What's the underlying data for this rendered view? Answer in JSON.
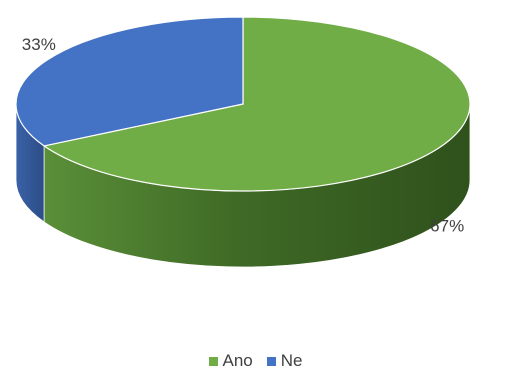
{
  "chart_data": {
    "type": "pie",
    "style": "3d",
    "title": "",
    "categories": [
      "Ano",
      "Ne"
    ],
    "values": [
      67,
      33
    ],
    "labels": [
      "67%",
      "33%"
    ],
    "colors": [
      "#70ad47",
      "#4472c4"
    ],
    "legend_position": "bottom"
  }
}
